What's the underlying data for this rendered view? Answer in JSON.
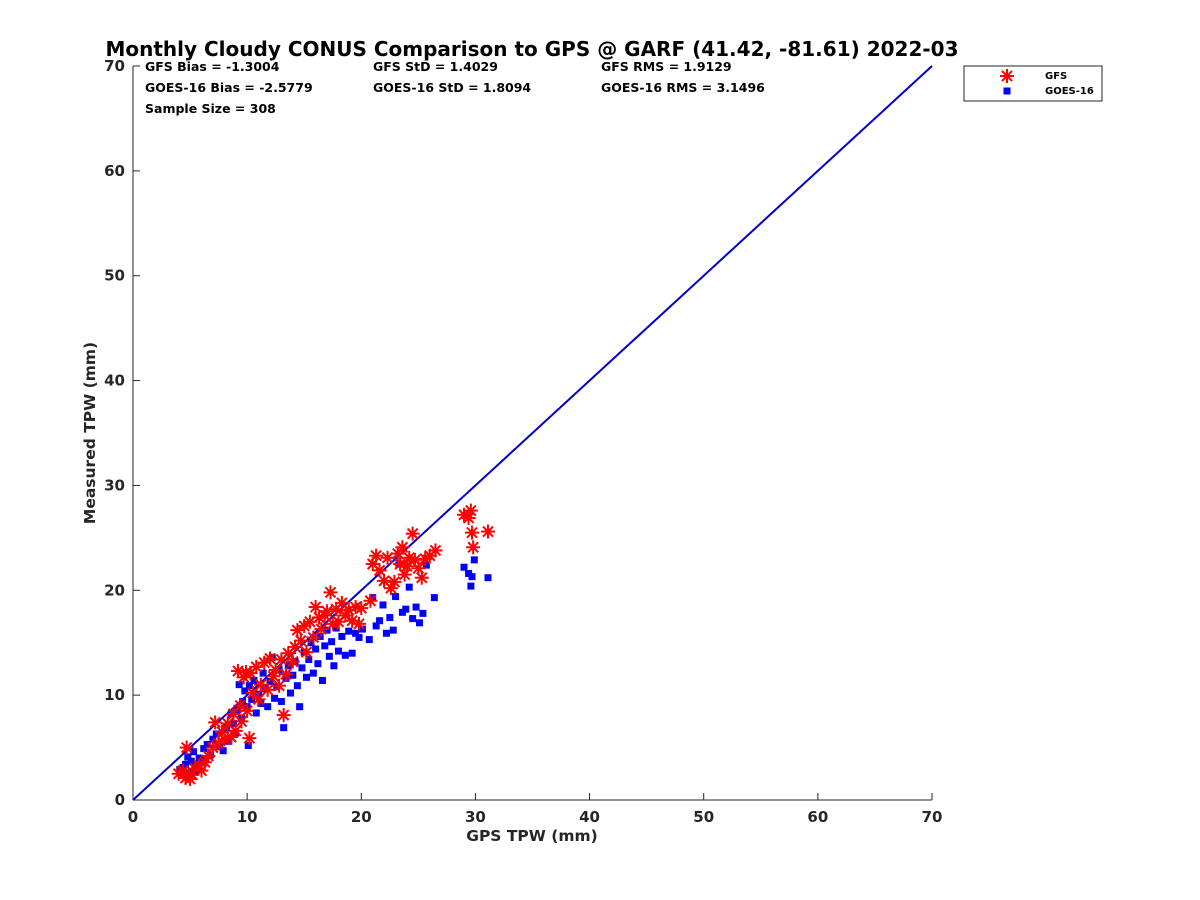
{
  "chart_data": {
    "type": "scatter",
    "title": "Monthly Cloudy CONUS Comparison to GPS @ GARF (41.42, -81.61) 2022-03",
    "xlabel": "GPS TPW (mm)",
    "ylabel": "Measured TPW (mm)",
    "xlim": [
      0,
      70
    ],
    "ylim": [
      0,
      70
    ],
    "xticks": [
      0,
      10,
      20,
      30,
      40,
      50,
      60,
      70
    ],
    "yticks": [
      0,
      10,
      20,
      30,
      40,
      50,
      60,
      70
    ],
    "grid": false,
    "legend_position": "top-right",
    "stats": [
      "GFS Bias = -1.3004",
      "GFS StD = 1.4029",
      "GFS RMS = 1.9129",
      "GOES-16 Bias = -2.5779",
      "GOES-16 StD = 1.8094",
      "GOES-16 RMS = 3.1496",
      "Sample Size = 308"
    ],
    "reference_line": {
      "x": [
        0,
        70
      ],
      "y": [
        0,
        70
      ],
      "color": "#0000cc"
    },
    "series": [
      {
        "name": "GFS",
        "marker": "asterisk",
        "color": "#ff0000",
        "points": [
          [
            4.0,
            2.5
          ],
          [
            4.4,
            2.8
          ],
          [
            4.6,
            2.1
          ],
          [
            4.8,
            2.3
          ],
          [
            5.0,
            2.0
          ],
          [
            5.2,
            2.4
          ],
          [
            4.7,
            5.0
          ],
          [
            5.4,
            3.0
          ],
          [
            5.8,
            3.3
          ],
          [
            6.0,
            2.8
          ],
          [
            6.3,
            3.6
          ],
          [
            6.6,
            4.2
          ],
          [
            7.0,
            5.0
          ],
          [
            7.2,
            7.4
          ],
          [
            7.5,
            5.4
          ],
          [
            7.8,
            6.5
          ],
          [
            8.0,
            5.8
          ],
          [
            8.3,
            7.3
          ],
          [
            8.6,
            6.0
          ],
          [
            8.8,
            8.2
          ],
          [
            9.0,
            6.6
          ],
          [
            9.2,
            12.3
          ],
          [
            9.4,
            9.0
          ],
          [
            9.5,
            7.5
          ],
          [
            9.7,
            11.7
          ],
          [
            9.9,
            12.2
          ],
          [
            10.0,
            8.5
          ],
          [
            10.2,
            5.9
          ],
          [
            10.3,
            12.1
          ],
          [
            10.5,
            10.2
          ],
          [
            10.8,
            12.7
          ],
          [
            11.0,
            9.6
          ],
          [
            11.2,
            11.0
          ],
          [
            11.5,
            13.1
          ],
          [
            11.8,
            10.5
          ],
          [
            12.0,
            13.5
          ],
          [
            12.3,
            11.8
          ],
          [
            12.5,
            12.4
          ],
          [
            12.8,
            10.9
          ],
          [
            13.0,
            13.4
          ],
          [
            13.2,
            8.1
          ],
          [
            13.4,
            12.0
          ],
          [
            13.6,
            14.0
          ],
          [
            14.0,
            13.2
          ],
          [
            14.2,
            14.6
          ],
          [
            14.4,
            16.2
          ],
          [
            14.7,
            15.2
          ],
          [
            15.0,
            16.6
          ],
          [
            15.2,
            14.1
          ],
          [
            15.5,
            17.0
          ],
          [
            15.8,
            15.5
          ],
          [
            16.0,
            18.4
          ],
          [
            16.3,
            17.4
          ],
          [
            16.5,
            16.3
          ],
          [
            16.8,
            17.6
          ],
          [
            17.0,
            18.0
          ],
          [
            17.3,
            19.8
          ],
          [
            17.5,
            16.8
          ],
          [
            17.8,
            18.2
          ],
          [
            18.0,
            17.0
          ],
          [
            18.3,
            18.8
          ],
          [
            18.6,
            17.6
          ],
          [
            18.9,
            18.1
          ],
          [
            19.2,
            17.1
          ],
          [
            19.5,
            18.4
          ],
          [
            19.8,
            16.8
          ],
          [
            20.0,
            18.3
          ],
          [
            20.8,
            19.0
          ],
          [
            21.0,
            22.5
          ],
          [
            21.3,
            23.3
          ],
          [
            21.6,
            21.9
          ],
          [
            22.0,
            20.9
          ],
          [
            22.3,
            23.1
          ],
          [
            22.6,
            20.2
          ],
          [
            22.9,
            20.8
          ],
          [
            23.2,
            23.5
          ],
          [
            23.4,
            22.5
          ],
          [
            23.6,
            24.1
          ],
          [
            23.8,
            21.5
          ],
          [
            24.0,
            22.3
          ],
          [
            24.2,
            23.1
          ],
          [
            24.5,
            25.4
          ],
          [
            24.7,
            22.9
          ],
          [
            25.0,
            22.1
          ],
          [
            25.3,
            21.2
          ],
          [
            25.6,
            23.0
          ],
          [
            26.0,
            23.3
          ],
          [
            26.5,
            23.8
          ],
          [
            29.0,
            27.2
          ],
          [
            29.4,
            26.9
          ],
          [
            29.6,
            27.6
          ],
          [
            29.8,
            24.1
          ],
          [
            29.7,
            25.5
          ],
          [
            31.1,
            25.6
          ]
        ]
      },
      {
        "name": "GOES-16",
        "marker": "square",
        "color": "#0000ff",
        "points": [
          [
            4.1,
            2.9
          ],
          [
            4.4,
            3.1
          ],
          [
            4.6,
            3.4
          ],
          [
            4.8,
            4.1
          ],
          [
            5.0,
            2.6
          ],
          [
            5.1,
            3.7
          ],
          [
            5.3,
            4.6
          ],
          [
            5.4,
            2.8
          ],
          [
            5.6,
            3.3
          ],
          [
            5.8,
            4.0
          ],
          [
            6.0,
            3.6
          ],
          [
            6.2,
            4.9
          ],
          [
            6.3,
            3.9
          ],
          [
            6.5,
            5.3
          ],
          [
            6.8,
            4.3
          ],
          [
            7.0,
            5.8
          ],
          [
            7.3,
            6.3
          ],
          [
            7.6,
            5.1
          ],
          [
            7.9,
            4.7
          ],
          [
            8.2,
            6.9
          ],
          [
            8.4,
            5.6
          ],
          [
            8.6,
            8.2
          ],
          [
            8.8,
            7.3
          ],
          [
            9.0,
            6.4
          ],
          [
            9.2,
            8.6
          ],
          [
            9.3,
            11.0
          ],
          [
            9.5,
            7.8
          ],
          [
            9.6,
            9.4
          ],
          [
            9.8,
            10.4
          ],
          [
            10.0,
            8.9
          ],
          [
            10.1,
            5.2
          ],
          [
            10.2,
            10.9
          ],
          [
            10.4,
            9.6
          ],
          [
            10.6,
            11.4
          ],
          [
            10.8,
            8.3
          ],
          [
            11.0,
            10.1
          ],
          [
            11.2,
            9.2
          ],
          [
            11.4,
            12.1
          ],
          [
            11.6,
            10.6
          ],
          [
            11.8,
            8.9
          ],
          [
            12.0,
            11.3
          ],
          [
            12.2,
            13.6
          ],
          [
            12.4,
            9.7
          ],
          [
            12.6,
            10.8
          ],
          [
            12.8,
            12.4
          ],
          [
            13.0,
            9.4
          ],
          [
            13.2,
            6.9
          ],
          [
            13.4,
            11.6
          ],
          [
            13.6,
            12.8
          ],
          [
            13.8,
            10.2
          ],
          [
            14.0,
            11.9
          ],
          [
            14.2,
            13.2
          ],
          [
            14.4,
            10.9
          ],
          [
            14.6,
            8.9
          ],
          [
            14.8,
            12.6
          ],
          [
            15.0,
            14.1
          ],
          [
            15.2,
            11.7
          ],
          [
            15.4,
            13.4
          ],
          [
            15.6,
            15.0
          ],
          [
            15.8,
            12.1
          ],
          [
            16.0,
            14.4
          ],
          [
            16.2,
            13.0
          ],
          [
            16.4,
            15.6
          ],
          [
            16.6,
            11.4
          ],
          [
            16.8,
            14.7
          ],
          [
            17.0,
            16.2
          ],
          [
            17.2,
            13.7
          ],
          [
            17.4,
            15.1
          ],
          [
            17.6,
            12.8
          ],
          [
            17.8,
            16.4
          ],
          [
            18.0,
            14.2
          ],
          [
            18.3,
            15.6
          ],
          [
            18.6,
            13.8
          ],
          [
            18.9,
            16.1
          ],
          [
            19.2,
            14.0
          ],
          [
            19.5,
            15.9
          ],
          [
            19.8,
            15.5
          ],
          [
            20.1,
            16.3
          ],
          [
            20.7,
            15.3
          ],
          [
            21.0,
            19.3
          ],
          [
            21.3,
            16.6
          ],
          [
            21.6,
            17.1
          ],
          [
            21.9,
            18.6
          ],
          [
            22.2,
            15.9
          ],
          [
            22.5,
            17.4
          ],
          [
            22.8,
            16.2
          ],
          [
            23.0,
            19.4
          ],
          [
            23.3,
            22.5
          ],
          [
            23.6,
            17.9
          ],
          [
            23.9,
            18.2
          ],
          [
            24.2,
            20.3
          ],
          [
            24.5,
            17.3
          ],
          [
            24.8,
            18.4
          ],
          [
            25.1,
            16.9
          ],
          [
            25.4,
            17.8
          ],
          [
            25.7,
            22.4
          ],
          [
            26.4,
            19.3
          ],
          [
            29.0,
            22.2
          ],
          [
            29.4,
            21.6
          ],
          [
            29.7,
            21.3
          ],
          [
            29.6,
            20.4
          ],
          [
            29.9,
            22.9
          ],
          [
            31.1,
            21.2
          ]
        ]
      }
    ]
  }
}
